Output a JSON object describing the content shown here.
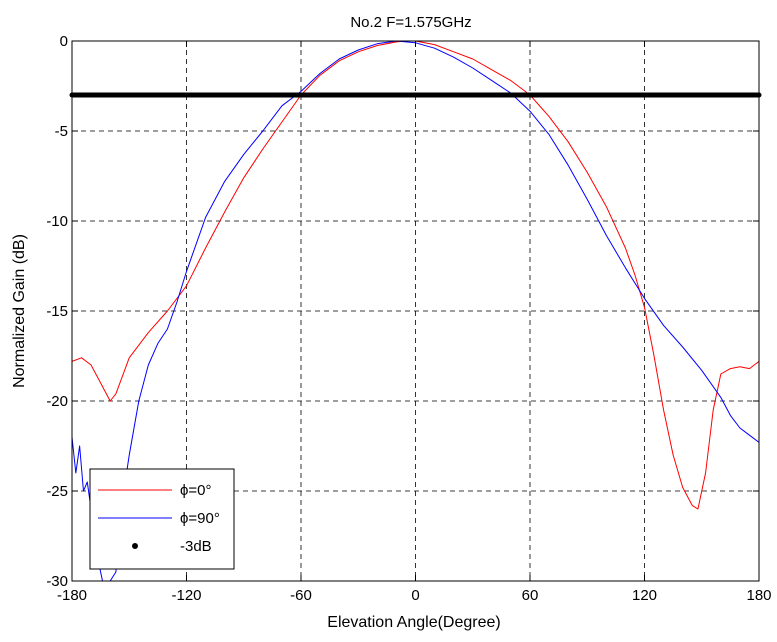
{
  "chart_data": {
    "type": "line",
    "title": "No.2 F=1.575GHz",
    "xlabel": "Elevation Angle(Degree)",
    "ylabel": "Normalized Gain (dB)",
    "xlim": [
      -180,
      180
    ],
    "ylim": [
      -30,
      0
    ],
    "xticks": [
      -180,
      -120,
      -60,
      0,
      60,
      120,
      180
    ],
    "yticks": [
      0,
      -5,
      -10,
      -15,
      -20,
      -25,
      -30
    ],
    "xtick_labels": [
      "-180",
      "-120",
      "-60",
      "0",
      "60",
      "120",
      "180"
    ],
    "ytick_labels": [
      "0",
      "-5",
      "-10",
      "-15",
      "-20",
      "-25",
      "-30"
    ],
    "grid": true,
    "legend_position": "bottom-left",
    "series": [
      {
        "name": "ϕ=0°",
        "color": "#ff0000",
        "style": "line",
        "points": [
          [
            -180,
            -17.8
          ],
          [
            -175,
            -17.6
          ],
          [
            -170,
            -18.0
          ],
          [
            -165,
            -19.0
          ],
          [
            -160,
            -20.0
          ],
          [
            -157,
            -19.6
          ],
          [
            -150,
            -17.6
          ],
          [
            -140,
            -16.2
          ],
          [
            -130,
            -15.0
          ],
          [
            -120,
            -13.6
          ],
          [
            -110,
            -11.5
          ],
          [
            -100,
            -9.5
          ],
          [
            -90,
            -7.6
          ],
          [
            -80,
            -6.0
          ],
          [
            -70,
            -4.5
          ],
          [
            -60,
            -3.0
          ],
          [
            -50,
            -1.9
          ],
          [
            -40,
            -1.1
          ],
          [
            -30,
            -0.6
          ],
          [
            -20,
            -0.25
          ],
          [
            -10,
            -0.05
          ],
          [
            -5,
            0
          ],
          [
            0,
            0
          ],
          [
            10,
            -0.2
          ],
          [
            20,
            -0.6
          ],
          [
            30,
            -1.0
          ],
          [
            40,
            -1.6
          ],
          [
            50,
            -2.2
          ],
          [
            60,
            -3.0
          ],
          [
            70,
            -4.2
          ],
          [
            80,
            -5.6
          ],
          [
            90,
            -7.3
          ],
          [
            100,
            -9.2
          ],
          [
            110,
            -11.5
          ],
          [
            115,
            -13.0
          ],
          [
            120,
            -14.8
          ],
          [
            125,
            -17.5
          ],
          [
            130,
            -20.5
          ],
          [
            135,
            -23.0
          ],
          [
            140,
            -24.8
          ],
          [
            145,
            -25.8
          ],
          [
            148,
            -26.0
          ],
          [
            152,
            -24.0
          ],
          [
            156,
            -20.5
          ],
          [
            160,
            -18.5
          ],
          [
            165,
            -18.2
          ],
          [
            170,
            -18.1
          ],
          [
            175,
            -18.2
          ],
          [
            180,
            -17.8
          ]
        ]
      },
      {
        "name": "ϕ=90°",
        "color": "#0000ff",
        "style": "line",
        "points": [
          [
            -180,
            -22.0
          ],
          [
            -178,
            -24.0
          ],
          [
            -176,
            -22.5
          ],
          [
            -174,
            -25.0
          ],
          [
            -172,
            -24.5
          ],
          [
            -170,
            -26.0
          ],
          [
            -167,
            -28.5
          ],
          [
            -164,
            -30.0
          ],
          [
            -160,
            -30.0
          ],
          [
            -157,
            -29.5
          ],
          [
            -155,
            -26.5
          ],
          [
            -150,
            -23.0
          ],
          [
            -145,
            -20.0
          ],
          [
            -140,
            -18.0
          ],
          [
            -135,
            -16.8
          ],
          [
            -130,
            -16.0
          ],
          [
            -125,
            -14.5
          ],
          [
            -120,
            -12.8
          ],
          [
            -110,
            -9.8
          ],
          [
            -100,
            -7.8
          ],
          [
            -90,
            -6.3
          ],
          [
            -80,
            -5.0
          ],
          [
            -70,
            -3.6
          ],
          [
            -60,
            -2.8
          ],
          [
            -50,
            -1.8
          ],
          [
            -40,
            -1.0
          ],
          [
            -30,
            -0.5
          ],
          [
            -20,
            -0.15
          ],
          [
            -10,
            0
          ],
          [
            0,
            -0.1
          ],
          [
            10,
            -0.4
          ],
          [
            20,
            -0.9
          ],
          [
            30,
            -1.5
          ],
          [
            40,
            -2.2
          ],
          [
            50,
            -2.9
          ],
          [
            60,
            -3.9
          ],
          [
            70,
            -5.2
          ],
          [
            80,
            -6.9
          ],
          [
            90,
            -8.8
          ],
          [
            100,
            -10.8
          ],
          [
            110,
            -12.6
          ],
          [
            120,
            -14.3
          ],
          [
            130,
            -15.8
          ],
          [
            140,
            -17.0
          ],
          [
            150,
            -18.3
          ],
          [
            160,
            -19.8
          ],
          [
            165,
            -20.8
          ],
          [
            170,
            -21.5
          ],
          [
            175,
            -21.9
          ],
          [
            180,
            -22.3
          ]
        ]
      },
      {
        "name": "-3dB",
        "color": "#000000",
        "style": "markers",
        "points": [
          [
            -180,
            -3
          ],
          [
            180,
            -3
          ]
        ]
      }
    ]
  }
}
